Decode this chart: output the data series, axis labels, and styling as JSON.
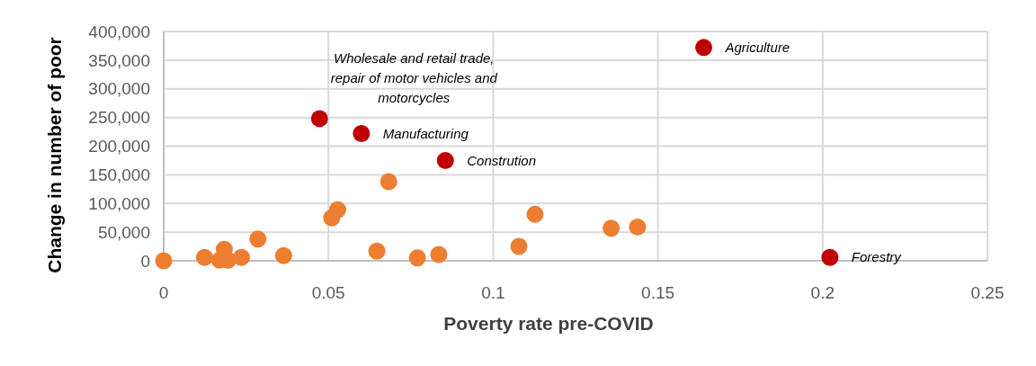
{
  "chart_data": {
    "type": "scatter",
    "xlabel": "Poverty rate pre-COVID",
    "ylabel": "Change in number of poor",
    "series": [
      {
        "color": "#ed7d31",
        "x": [
          0,
          0.0124,
          0.0184,
          0.017,
          0.0195,
          0.0236,
          0.0286,
          0.0364,
          0.051,
          0.0528,
          0.0683,
          0.0647,
          0.077,
          0.0835,
          0.1078,
          0.1127,
          0.1358,
          0.1438
        ],
        "values": [
          0,
          6000,
          20000,
          1000,
          1000,
          6000,
          38000,
          9000,
          75000,
          89000,
          138000,
          17000,
          5000,
          11000,
          25000,
          81000,
          57000,
          59000
        ]
      },
      {
        "color": "#c00000",
        "x": [
          0.0473,
          0.06,
          0.0855,
          0.1639,
          0.2022
        ],
        "values": [
          248000,
          222000,
          175000,
          372000,
          6000
        ]
      }
    ],
    "annotations": [
      {
        "text": "Wholesale and retail trade, repair of motor vehicles and motorcycles",
        "x": 0.0473,
        "y": 248000
      },
      {
        "text": "Manufacturing",
        "x": 0.06,
        "y": 222000
      },
      {
        "text": "Constrution",
        "x": 0.0855,
        "y": 175000
      },
      {
        "text": "Agriculture",
        "x": 0.1639,
        "y": 372000
      },
      {
        "text": "Forestry",
        "x": 0.2022,
        "y": 6000
      }
    ],
    "xlim": [
      0,
      0.25
    ],
    "xticks": [
      0,
      0.05,
      0.1,
      0.15,
      0.2,
      0.25
    ],
    "ylim": [
      0,
      400000
    ],
    "yticks": [
      0,
      {
        "value": 50000,
        "label": "50,000"
      },
      {
        "value": 100000,
        "label": "100,000"
      },
      {
        "value": 150000,
        "label": "150,000"
      },
      {
        "value": 200000,
        "label": "200,000"
      },
      {
        "value": 250000,
        "label": "250,000"
      },
      {
        "value": 300000,
        "label": "300,000"
      },
      {
        "value": 350000,
        "label": "350,000"
      },
      {
        "value": 400000,
        "label": "400,000"
      }
    ],
    "grid": true,
    "marker": "circle"
  }
}
